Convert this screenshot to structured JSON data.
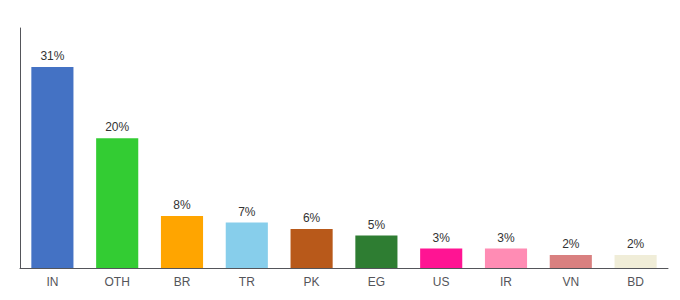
{
  "chart_data": {
    "type": "bar",
    "categories": [
      "IN",
      "OTH",
      "BR",
      "TR",
      "PK",
      "EG",
      "US",
      "IR",
      "VN",
      "BD"
    ],
    "values": [
      31,
      20,
      8,
      7,
      6,
      5,
      3,
      3,
      2,
      2
    ],
    "value_labels": [
      "31%",
      "20%",
      "8%",
      "7%",
      "6%",
      "5%",
      "3%",
      "3%",
      "2%",
      "2%"
    ],
    "colors": [
      "#4472C4",
      "#33CC33",
      "#FFA500",
      "#87CEEB",
      "#B8591A",
      "#2E7D32",
      "#FF1493",
      "#FF8CB4",
      "#D98080",
      "#F0EDD8"
    ],
    "ylim": [
      0,
      37
    ],
    "yticks": [],
    "grid": false,
    "tick_labels": "x",
    "data_labels": true
  }
}
